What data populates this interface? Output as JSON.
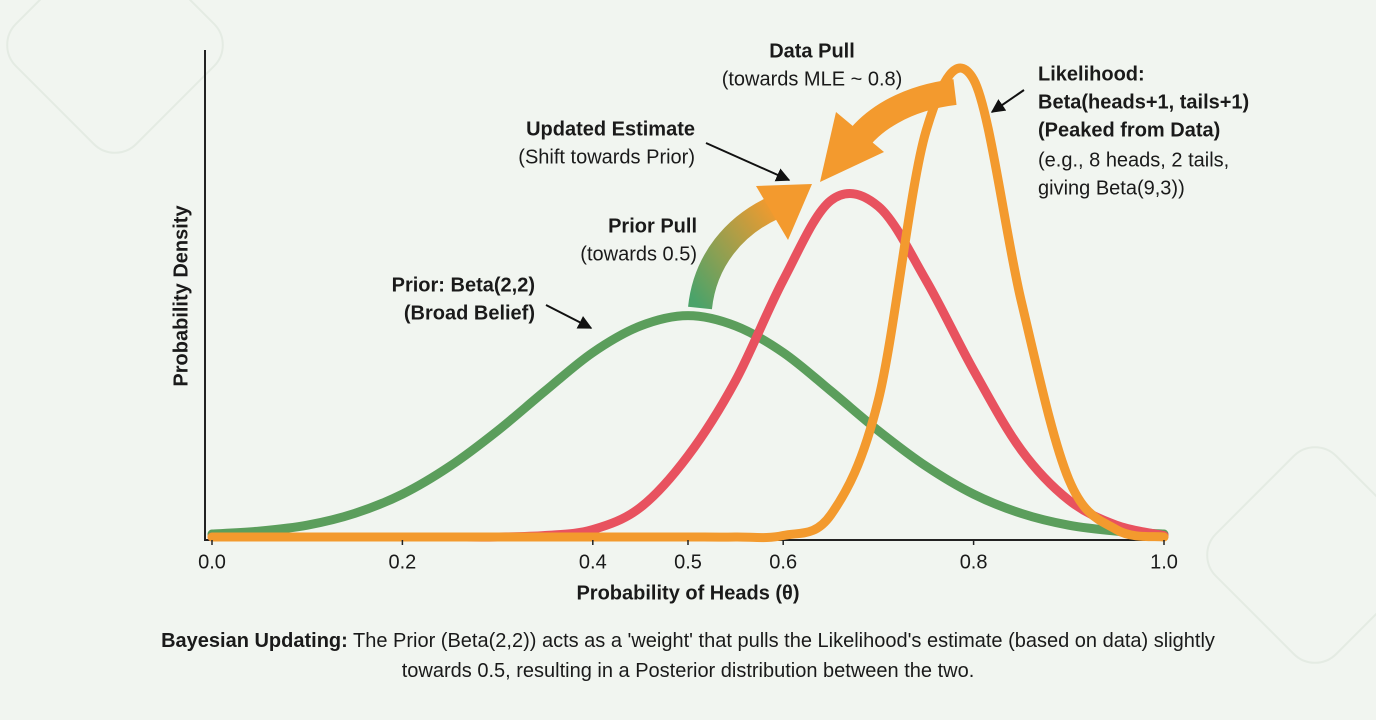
{
  "chart_data": {
    "type": "line",
    "x_label": "Probability of Heads (θ)",
    "y_label": "Probability Density",
    "x": [
      0,
      0.05,
      0.1,
      0.15,
      0.2,
      0.25,
      0.3,
      0.35,
      0.4,
      0.45,
      0.5,
      0.55,
      0.6,
      0.65,
      0.7,
      0.75,
      0.8,
      0.85,
      0.9,
      0.95,
      1
    ],
    "series": [
      {
        "color": "#5b9e5c",
        "values": [
          0.02,
          0.04,
          0.08,
          0.16,
          0.29,
          0.48,
          0.72,
          0.99,
          1.25,
          1.43,
          1.5,
          1.43,
          1.25,
          0.99,
          0.72,
          0.48,
          0.29,
          0.16,
          0.08,
          0.04,
          0.02
        ]
      },
      {
        "color": "#e8525f",
        "values": [
          0,
          0,
          0,
          0,
          0,
          0,
          0,
          0.01,
          0.05,
          0.2,
          0.55,
          1.06,
          1.74,
          2.28,
          2.24,
          1.74,
          1.13,
          0.59,
          0.25,
          0.08,
          0.01
        ]
      },
      {
        "color": "#f39a2e",
        "values": [
          0,
          0,
          0,
          0,
          0,
          0,
          0,
          0,
          0,
          0,
          0,
          0,
          0.01,
          0.15,
          0.93,
          2.75,
          3.1,
          1.6,
          0.39,
          0.05,
          0
        ]
      }
    ],
    "xlim": [
      0,
      1
    ],
    "ylim": [
      0,
      3.3
    ],
    "xticks": [
      {
        "value": 0,
        "label": "0.0"
      },
      0.2,
      0.4,
      0.5,
      0.6,
      0.8,
      {
        "value": 1,
        "label": "1.0"
      }
    ],
    "annotations": [
      {
        "title_lines": [
          "Data Pull"
        ],
        "lines": [
          "(towards MLE ~ 0.8)"
        ]
      },
      {
        "title_lines": [
          "Likelihood:",
          "Beta(heads+1, tails+1)",
          "(Peaked from Data)"
        ],
        "lines": [
          "(e.g., 8 heads, 2 tails,",
          "giving Beta(9,3))"
        ]
      },
      {
        "title_lines": [
          "Updated Estimate"
        ],
        "lines": [
          "(Shift towards Prior)"
        ]
      },
      {
        "title_lines": [
          "Prior Pull"
        ],
        "lines": [
          "(towards 0.5)"
        ]
      },
      {
        "title_lines": [
          "Prior: Beta(2,2)",
          "(Broad Belief)"
        ],
        "lines": []
      }
    ],
    "caption": {
      "lead": "Bayesian Updating:",
      "text": "The Prior (Beta(2,2)) acts as a 'weight' that pulls the Likelihood's estimate (based on data) slightly towards 0.5, resulting in a Posterior distribution between the two."
    }
  }
}
